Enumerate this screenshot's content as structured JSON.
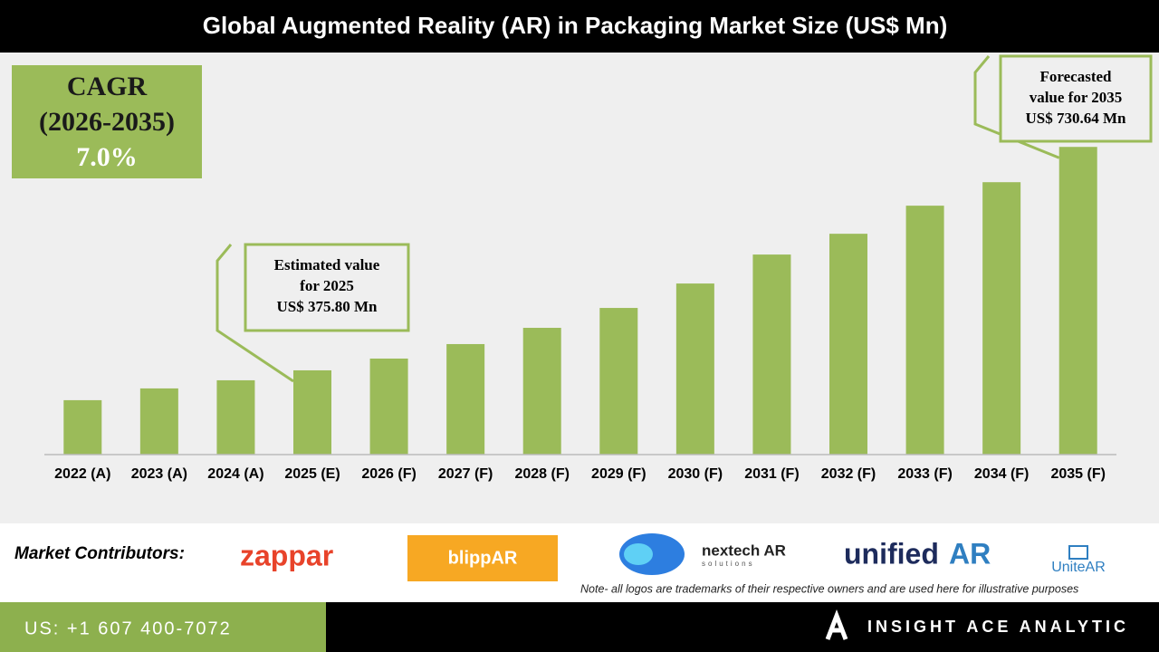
{
  "chart_data": {
    "type": "bar",
    "title": "Global Augmented Reality (AR) in Packaging Market Size (US$ Mn)",
    "categories": [
      "2022 (A)",
      "2023 (A)",
      "2024 (A)",
      "2025 (E)",
      "2026 (F)",
      "2027 (F)",
      "2028 (F)",
      "2029 (F)",
      "2030 (F)",
      "2031 (F)",
      "2032 (F)",
      "2033 (F)",
      "2034 (F)",
      "2035 (F)"
    ],
    "values": [
      328.4,
      347.1,
      360.0,
      375.8,
      394.5,
      417.5,
      443.3,
      474.9,
      513.7,
      559.7,
      592.7,
      637.3,
      674.6,
      730.64
    ],
    "color": "#9bbb59",
    "ylim": [
      242,
      800
    ],
    "annotations": [
      {
        "category": 3,
        "lines": [
          "Estimated value",
          "for 2025",
          "US$ 375.80 Mn"
        ]
      },
      {
        "category": 13,
        "lines": [
          "Forecasted",
          "value for 2035",
          "US$ 730.64 Mn"
        ]
      }
    ]
  },
  "cagr_box": {
    "lines": [
      "CAGR",
      "(2026-2035)",
      "7.0%"
    ]
  },
  "contributors": {
    "label": "Market Contributors:",
    "logos": [
      "zappar",
      "blippAR",
      "nextech AR",
      "solutions",
      "unified",
      "AR",
      "UniteAR"
    ],
    "note": "Note- all logos are trademarks of their respective owners and are used here for illustrative purposes"
  },
  "footer": {
    "phone": "US: +1 607 400-7072",
    "brand": "INSIGHT ACE ANALYTIC"
  }
}
